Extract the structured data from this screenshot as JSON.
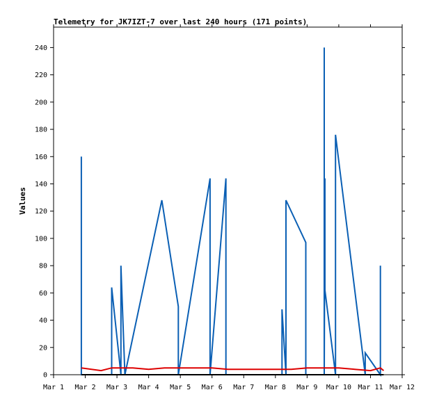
{
  "chart_data": {
    "type": "line",
    "title": "Telemetry for JK7IZT-7 over last 240 hours (171 points)",
    "xlabel": "",
    "ylabel": "Values",
    "x_tick_labels": [
      "Mar 1",
      "Mar 2",
      "Mar 3",
      "Mar 4",
      "Mar 5",
      "Mar 6",
      "Mar 7",
      "Mar 8",
      "Mar 9",
      "Mar 10",
      "Mar 11",
      "Mar 12"
    ],
    "y_ticks": [
      0,
      20,
      40,
      60,
      80,
      100,
      120,
      140,
      160,
      180,
      200,
      220,
      240
    ],
    "xlim": [
      "Mar 1 00:00",
      "Mar 12 00:00"
    ],
    "ylim": [
      0,
      255
    ],
    "grid": false,
    "legend": "none",
    "series": [
      {
        "color": "#0a5fb4",
        "x": [
          "Mar 1 21:00",
          "Mar 1 21:00",
          "Mar 1 21:00",
          "Mar 1 21:00",
          "Mar 1 21:00",
          "Mar 1 21:30",
          "Mar 1 21:30",
          "Mar 2 20:00",
          "Mar 2 20:00",
          "Mar 3 03:00",
          "Mar 3 03:00",
          "Mar 3 03:30",
          "Mar 3 06:00",
          "Mar 3 06:00",
          "Mar 4 10:00",
          "Mar 4 22:30",
          "Mar 4 22:30",
          "Mar 4 22:30",
          "Mar 5 22:30",
          "Mar 5 22:30",
          "Mar 6 10:30",
          "Mar 6 10:30",
          "Mar 8 05:00",
          "Mar 8 05:00",
          "Mar 8 08:00",
          "Mar 8 08:00",
          "Mar 8 23:00",
          "Mar 8 23:00",
          "Mar 9 13:00",
          "Mar 9 13:00",
          "Mar 9 13:00",
          "Mar 9 13:30",
          "Mar 9 13:30",
          "Mar 9 21:30",
          "Mar 9 21:30",
          "Mar 10 20:00",
          "Mar 10 20:00",
          "Mar 11 07:30",
          "Mar 11 07:30",
          "Mar 11 07:30"
        ],
        "values": [
          0,
          160,
          96,
          128,
          0,
          0,
          0,
          0,
          64,
          0,
          80,
          67,
          0,
          0,
          128,
          50,
          33,
          0,
          144,
          0,
          144,
          0,
          0,
          48,
          0,
          128,
          97,
          0,
          0,
          240,
          0,
          144,
          62,
          0,
          176,
          0,
          16,
          0,
          80,
          0
        ]
      },
      {
        "color": "#dd0000",
        "x": [
          "Mar 1 21:00",
          "Mar 2 12:00",
          "Mar 2 20:00",
          "Mar 3 12:00",
          "Mar 4 00:00",
          "Mar 4 12:00",
          "Mar 5 00:00",
          "Mar 5 12:00",
          "Mar 6 00:00",
          "Mar 6 12:00",
          "Mar 7 00:00",
          "Mar 7 12:00",
          "Mar 8 00:00",
          "Mar 8 12:00",
          "Mar 9 00:00",
          "Mar 9 12:00",
          "Mar 10 00:00",
          "Mar 10 12:00",
          "Mar 11 00:00",
          "Mar 11 07:30",
          "Mar 11 10:00"
        ],
        "values": [
          5,
          3,
          5,
          5,
          4,
          5,
          5,
          5,
          5,
          4,
          4,
          4,
          4,
          4,
          5,
          5,
          5,
          4,
          3,
          5,
          3
        ]
      },
      {
        "color": "#000000",
        "x": [
          "Mar 1 21:00",
          "Mar 11 10:00"
        ],
        "values": [
          0,
          0
        ]
      }
    ]
  }
}
